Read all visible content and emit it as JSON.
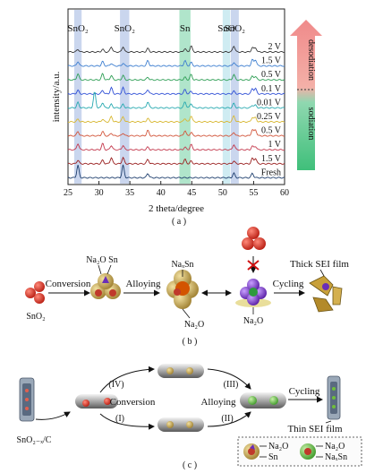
{
  "chart_data": {
    "type": "line",
    "xlabel": "2 theta/degree",
    "ylabel": "intensity/a.u.",
    "xlim": [
      25,
      60
    ],
    "x_ticks": [
      "25",
      "30",
      "35",
      "40",
      "45",
      "50",
      "55",
      "60"
    ],
    "series": [
      {
        "name": "2 V",
        "color": "#3a3a3a"
      },
      {
        "name": "1.5 V",
        "color": "#3e7fd0"
      },
      {
        "name": "0.5 V",
        "color": "#2e9e55"
      },
      {
        "name": "0.1 V",
        "color": "#2f4fd6"
      },
      {
        "name": "0.01 V",
        "color": "#27a9b0"
      },
      {
        "name": "0.25 V",
        "color": "#d8b834"
      },
      {
        "name": "0.5 V",
        "color": "#d2553a"
      },
      {
        "name": "1 V",
        "color": "#c43a4e"
      },
      {
        "name": "1.5 V",
        "color": "#9a1f1f"
      },
      {
        "name": "Fresh",
        "color": "#1f3f6e"
      }
    ],
    "highlights": [
      {
        "label": "SnO2",
        "label_display": "SnO₂",
        "x_from": 26.0,
        "x_to": 27.2,
        "color": "#9fb4e0"
      },
      {
        "label": "SnO2",
        "label_display": "SnO₂",
        "x_from": 33.4,
        "x_to": 34.9,
        "color": "#9fb4e0"
      },
      {
        "label": "Sn",
        "x_from": 43.0,
        "x_to": 44.8,
        "color": "#6fd0a0"
      },
      {
        "label": "SnO",
        "x_from": 50.0,
        "x_to": 51.2,
        "color": "#a8dde8"
      },
      {
        "label": "SnO2",
        "label_display": "SnO₂",
        "x_from": 51.3,
        "x_to": 52.6,
        "color": "#9fb4e0"
      }
    ],
    "arrows": {
      "desodiation": "desodiation",
      "sodiation": "sodiation"
    }
  },
  "panel_labels": {
    "a": "( a )",
    "b": "( b )",
    "c": "( c )"
  },
  "panel_b": {
    "sno2": "SnO₂",
    "conversion": "Conversion",
    "na2o_sn_top": "Na₂O Sn",
    "alloying": "Alloying",
    "naxsn": "NaₓSn",
    "na2o_mid": "Na₂O",
    "na2o_right": "Na₂O",
    "cycling": "Cycling",
    "thick_sei": "Thick SEI film"
  },
  "panel_c": {
    "composite": "SnO₂₋ₓ/C",
    "iv": "(IV)",
    "conversion": "Conversion",
    "i": "(I)",
    "iii": "(III)",
    "alloying": "Alloying",
    "ii": "(II)",
    "cycling": "Cycling",
    "thin_sei": "Thin SEI film",
    "legend_na2o_1": "Na₂O",
    "legend_sn": "Sn",
    "legend_na2o_2": "Na₂O",
    "legend_naxsn": "NaₓSn"
  }
}
